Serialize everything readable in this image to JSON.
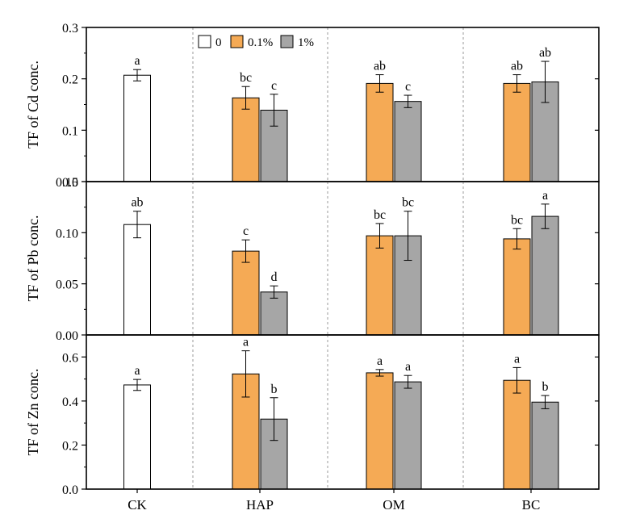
{
  "colors": {
    "control": "#ffffff",
    "dose_0_1": "#f5aa55",
    "dose_1": "#a6a6a6",
    "axis": "#000000",
    "separator": "#9a9a9a"
  },
  "legend": {
    "entries": [
      "0",
      "0.1%",
      "1%"
    ]
  },
  "chart_data": [
    {
      "type": "bar",
      "title": "",
      "ylabel": "TF of Cd conc.",
      "ylim": [
        0,
        0.3
      ],
      "yticks": [
        "0.0",
        "0.1",
        "0.2",
        "0.3"
      ],
      "groups": [
        "CK",
        "HAP",
        "OM",
        "BC"
      ],
      "bars": [
        {
          "group": "CK",
          "series": "0",
          "value": 0.207,
          "error": 0.011,
          "letter": "a"
        },
        {
          "group": "HAP",
          "series": "0.1%",
          "value": 0.163,
          "error": 0.022,
          "letter": "bc"
        },
        {
          "group": "HAP",
          "series": "1%",
          "value": 0.139,
          "error": 0.031,
          "letter": "c"
        },
        {
          "group": "OM",
          "series": "0.1%",
          "value": 0.191,
          "error": 0.017,
          "letter": "ab"
        },
        {
          "group": "OM",
          "series": "1%",
          "value": 0.156,
          "error": 0.012,
          "letter": "c"
        },
        {
          "group": "BC",
          "series": "0.1%",
          "value": 0.191,
          "error": 0.017,
          "letter": "ab"
        },
        {
          "group": "BC",
          "series": "1%",
          "value": 0.194,
          "error": 0.04,
          "letter": "ab"
        }
      ]
    },
    {
      "type": "bar",
      "title": "",
      "ylabel": "TF of Pb conc.",
      "ylim": [
        0,
        0.15
      ],
      "yticks": [
        "0.00",
        "0.05",
        "0.10",
        "0.15"
      ],
      "groups": [
        "CK",
        "HAP",
        "OM",
        "BC"
      ],
      "bars": [
        {
          "group": "CK",
          "series": "0",
          "value": 0.108,
          "error": 0.013,
          "letter": "ab"
        },
        {
          "group": "HAP",
          "series": "0.1%",
          "value": 0.082,
          "error": 0.011,
          "letter": "c"
        },
        {
          "group": "HAP",
          "series": "1%",
          "value": 0.042,
          "error": 0.006,
          "letter": "d"
        },
        {
          "group": "OM",
          "series": "0.1%",
          "value": 0.097,
          "error": 0.012,
          "letter": "bc"
        },
        {
          "group": "OM",
          "series": "1%",
          "value": 0.097,
          "error": 0.024,
          "letter": "bc"
        },
        {
          "group": "BC",
          "series": "0.1%",
          "value": 0.094,
          "error": 0.01,
          "letter": "bc"
        },
        {
          "group": "BC",
          "series": "1%",
          "value": 0.116,
          "error": 0.012,
          "letter": "a"
        }
      ]
    },
    {
      "type": "bar",
      "title": "",
      "ylabel": "TF of Zn conc.",
      "xlabel": "",
      "ylim": [
        0,
        0.7
      ],
      "yticks": [
        "0.0",
        "0.2",
        "0.4",
        "0.6"
      ],
      "groups": [
        "CK",
        "HAP",
        "OM",
        "BC"
      ],
      "bars": [
        {
          "group": "CK",
          "series": "0",
          "value": 0.473,
          "error": 0.025,
          "letter": "a"
        },
        {
          "group": "HAP",
          "series": "0.1%",
          "value": 0.523,
          "error": 0.105,
          "letter": "a"
        },
        {
          "group": "HAP",
          "series": "1%",
          "value": 0.318,
          "error": 0.097,
          "letter": "b"
        },
        {
          "group": "OM",
          "series": "0.1%",
          "value": 0.528,
          "error": 0.015,
          "letter": "a"
        },
        {
          "group": "OM",
          "series": "1%",
          "value": 0.487,
          "error": 0.029,
          "letter": "a"
        },
        {
          "group": "BC",
          "series": "0.1%",
          "value": 0.494,
          "error": 0.058,
          "letter": "a"
        },
        {
          "group": "BC",
          "series": "1%",
          "value": 0.395,
          "error": 0.03,
          "letter": "b"
        }
      ]
    }
  ]
}
